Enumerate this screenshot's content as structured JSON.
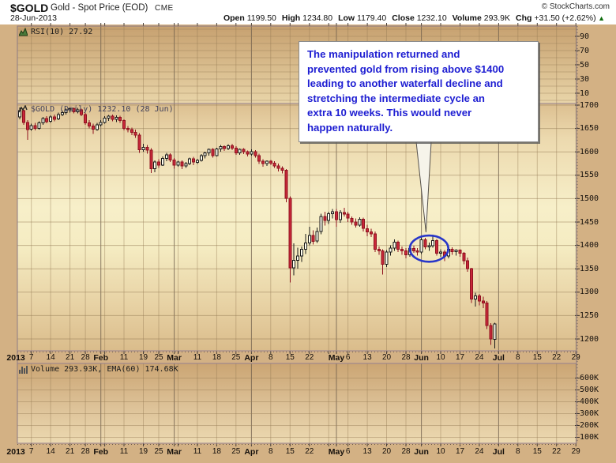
{
  "header": {
    "symbol": "$GOLD",
    "title": "Gold - Spot Price (EOD)",
    "exchange": "CME",
    "copyright": "© StockCharts.com",
    "date": "28-Jun-2013",
    "quote_fields": [
      {
        "label": "Open",
        "value": "1199.50"
      },
      {
        "label": "High",
        "value": "1234.80"
      },
      {
        "label": "Low",
        "value": "1179.40"
      },
      {
        "label": "Close",
        "value": "1232.10"
      },
      {
        "label": "Volume",
        "value": "293.9K"
      },
      {
        "label": "Chg",
        "value": "+31.50 (+2.62%)"
      }
    ],
    "chg_up_symbol": "▲"
  },
  "panels": {
    "rsi": {
      "label": "RSI(10) 27.92"
    },
    "price": {
      "label": "$GOLD (Daily) 1232.10 (28 Jun)"
    },
    "volume": {
      "label": "Volume 293.93K, EMA(60) 174.68K"
    }
  },
  "annotation": {
    "lines": [
      "The manipulation returned and",
      "prevented gold from rising above $1400",
      "leading to another waterfall decline and",
      "stretching the intermediate cycle an",
      "extra 10 weeks. This would never",
      "happen naturally."
    ]
  },
  "colors": {
    "candle_up_fill": "#fffdee",
    "candle_up_stroke": "#1a1a1a",
    "candle_down_fill": "#c9283a",
    "candle_down_stroke": "#8f121f",
    "annotation_text": "#1e1ed2",
    "ellipse_blue": "#2736c9",
    "background_tan": "#d3b184",
    "grid": "rgba(148,122,84,0.5)"
  },
  "chart_data": {
    "type": "candlestick",
    "title": "$GOLD (Daily) 1232.10 (28 Jun)",
    "legend_note": "red = down day, white = up day; RSI and Volume panes empty in source image",
    "price_axis": {
      "ticks": [
        1700,
        1650,
        1600,
        1550,
        1500,
        1450,
        1400,
        1350,
        1300,
        1250,
        1200
      ],
      "range": [
        1147,
        1703
      ]
    },
    "rsi_axis": {
      "ticks": [
        90,
        70,
        50,
        30,
        10
      ],
      "indicator": "RSI(10)",
      "value": 27.92
    },
    "volume_axis": {
      "ticks": [
        600,
        500,
        400,
        300,
        200,
        100
      ],
      "unit": "K",
      "volume": "293.93K",
      "ema60": "174.68K"
    },
    "x_labels": [
      {
        "t": "2013",
        "i": -1,
        "m": true
      },
      {
        "t": "7",
        "i": 3
      },
      {
        "t": "14",
        "i": 8
      },
      {
        "t": "21",
        "i": 13
      },
      {
        "t": "28",
        "i": 17
      },
      {
        "t": "Feb",
        "i": 21,
        "m": true
      },
      {
        "t": "11",
        "i": 27
      },
      {
        "t": "19",
        "i": 32
      },
      {
        "t": "25",
        "i": 36
      },
      {
        "t": "Mar",
        "i": 40,
        "m": true
      },
      {
        "t": "11",
        "i": 46
      },
      {
        "t": "18",
        "i": 51
      },
      {
        "t": "25",
        "i": 56
      },
      {
        "t": "Apr",
        "i": 60,
        "m": true
      },
      {
        "t": "8",
        "i": 65
      },
      {
        "t": "15",
        "i": 70
      },
      {
        "t": "22",
        "i": 75
      },
      {
        "t": "May",
        "i": 82,
        "m": true
      },
      {
        "t": "6",
        "i": 85
      },
      {
        "t": "13",
        "i": 90
      },
      {
        "t": "20",
        "i": 95
      },
      {
        "t": "28",
        "i": 100
      },
      {
        "t": "Jun",
        "i": 104,
        "m": true
      },
      {
        "t": "10",
        "i": 109
      },
      {
        "t": "17",
        "i": 114
      },
      {
        "t": "24",
        "i": 119
      },
      {
        "t": "Jul",
        "i": 124,
        "m": true
      },
      {
        "t": "8",
        "i": 129
      },
      {
        "t": "15",
        "i": 134
      },
      {
        "t": "22",
        "i": 139
      },
      {
        "t": "29",
        "i": 144
      }
    ],
    "grid": {
      "weeks": [
        3,
        8,
        13,
        17,
        22,
        27,
        32,
        36,
        41,
        46,
        51,
        56,
        65,
        70,
        75,
        80,
        85,
        90,
        95,
        100,
        109,
        114,
        119,
        129,
        134,
        139,
        144
      ],
      "months": [
        21,
        40,
        60,
        82,
        104,
        124
      ]
    },
    "marks": {
      "ellipse": {
        "i": 106,
        "price": 1393,
        "rx_days": 5,
        "ry_price": 28
      },
      "pointer_tip": {
        "i": 105.2,
        "price": 1428
      }
    },
    "ohlc": [
      [
        1675,
        1695,
        1670,
        1688
      ],
      [
        1688,
        1690,
        1658,
        1663
      ],
      [
        1663,
        1668,
        1626,
        1648
      ],
      [
        1648,
        1660,
        1645,
        1656
      ],
      [
        1656,
        1662,
        1646,
        1650
      ],
      [
        1650,
        1665,
        1648,
        1662
      ],
      [
        1662,
        1675,
        1658,
        1671
      ],
      [
        1671,
        1676,
        1661,
        1665
      ],
      [
        1665,
        1678,
        1662,
        1675
      ],
      [
        1675,
        1680,
        1665,
        1670
      ],
      [
        1670,
        1684,
        1668,
        1680
      ],
      [
        1680,
        1688,
        1676,
        1684
      ],
      [
        1684,
        1692,
        1680,
        1690
      ],
      [
        1690,
        1696,
        1684,
        1692
      ],
      [
        1692,
        1695,
        1682,
        1686
      ],
      [
        1686,
        1694,
        1682,
        1690
      ],
      [
        1690,
        1692,
        1676,
        1680
      ],
      [
        1680,
        1683,
        1658,
        1662
      ],
      [
        1662,
        1668,
        1650,
        1655
      ],
      [
        1655,
        1660,
        1638,
        1648
      ],
      [
        1648,
        1662,
        1645,
        1658
      ],
      [
        1658,
        1668,
        1654,
        1663
      ],
      [
        1663,
        1676,
        1660,
        1672
      ],
      [
        1672,
        1679,
        1666,
        1676
      ],
      [
        1676,
        1680,
        1665,
        1670
      ],
      [
        1670,
        1678,
        1664,
        1674
      ],
      [
        1674,
        1677,
        1662,
        1667
      ],
      [
        1667,
        1670,
        1646,
        1650
      ],
      [
        1650,
        1655,
        1642,
        1648
      ],
      [
        1648,
        1652,
        1636,
        1642
      ],
      [
        1642,
        1648,
        1630,
        1636
      ],
      [
        1636,
        1640,
        1598,
        1605
      ],
      [
        1605,
        1617,
        1600,
        1610
      ],
      [
        1610,
        1615,
        1596,
        1604
      ],
      [
        1604,
        1608,
        1555,
        1564
      ],
      [
        1564,
        1582,
        1556,
        1578
      ],
      [
        1578,
        1584,
        1566,
        1572
      ],
      [
        1572,
        1590,
        1570,
        1586
      ],
      [
        1586,
        1598,
        1580,
        1594
      ],
      [
        1594,
        1597,
        1578,
        1583
      ],
      [
        1583,
        1587,
        1564,
        1572
      ],
      [
        1572,
        1581,
        1568,
        1578
      ],
      [
        1578,
        1582,
        1563,
        1570
      ],
      [
        1570,
        1578,
        1566,
        1575
      ],
      [
        1575,
        1588,
        1572,
        1585
      ],
      [
        1585,
        1589,
        1572,
        1578
      ],
      [
        1578,
        1585,
        1574,
        1582
      ],
      [
        1582,
        1595,
        1579,
        1592
      ],
      [
        1592,
        1600,
        1586,
        1598
      ],
      [
        1598,
        1607,
        1592,
        1605
      ],
      [
        1605,
        1608,
        1588,
        1592
      ],
      [
        1592,
        1609,
        1590,
        1606
      ],
      [
        1606,
        1615,
        1600,
        1611
      ],
      [
        1611,
        1614,
        1602,
        1607
      ],
      [
        1607,
        1616,
        1604,
        1613
      ],
      [
        1613,
        1617,
        1604,
        1608
      ],
      [
        1608,
        1612,
        1594,
        1598
      ],
      [
        1598,
        1607,
        1594,
        1605
      ],
      [
        1605,
        1608,
        1595,
        1600
      ],
      [
        1600,
        1603,
        1590,
        1595
      ],
      [
        1595,
        1605,
        1592,
        1600
      ],
      [
        1600,
        1604,
        1588,
        1592
      ],
      [
        1592,
        1596,
        1574,
        1580
      ],
      [
        1580,
        1584,
        1568,
        1575
      ],
      [
        1575,
        1582,
        1570,
        1580
      ],
      [
        1580,
        1583,
        1572,
        1576
      ],
      [
        1576,
        1580,
        1566,
        1570
      ],
      [
        1570,
        1575,
        1558,
        1565
      ],
      [
        1565,
        1569,
        1554,
        1561
      ],
      [
        1561,
        1563,
        1492,
        1501
      ],
      [
        1501,
        1505,
        1321,
        1352
      ],
      [
        1352,
        1404,
        1336,
        1368
      ],
      [
        1368,
        1395,
        1350,
        1377
      ],
      [
        1377,
        1398,
        1365,
        1392
      ],
      [
        1392,
        1425,
        1382,
        1405
      ],
      [
        1405,
        1440,
        1400,
        1421
      ],
      [
        1421,
        1432,
        1402,
        1409
      ],
      [
        1409,
        1438,
        1405,
        1430
      ],
      [
        1430,
        1468,
        1424,
        1462
      ],
      [
        1462,
        1472,
        1442,
        1453
      ],
      [
        1453,
        1472,
        1446,
        1468
      ],
      [
        1468,
        1478,
        1458,
        1472
      ],
      [
        1472,
        1478,
        1440,
        1455
      ],
      [
        1455,
        1475,
        1448,
        1470
      ],
      [
        1470,
        1480,
        1462,
        1467
      ],
      [
        1467,
        1472,
        1450,
        1458
      ],
      [
        1458,
        1462,
        1444,
        1450
      ],
      [
        1450,
        1458,
        1438,
        1443
      ],
      [
        1443,
        1460,
        1440,
        1456
      ],
      [
        1456,
        1459,
        1430,
        1436
      ],
      [
        1436,
        1444,
        1420,
        1429
      ],
      [
        1429,
        1436,
        1418,
        1425
      ],
      [
        1425,
        1430,
        1386,
        1392
      ],
      [
        1392,
        1398,
        1380,
        1388
      ],
      [
        1388,
        1392,
        1338,
        1360
      ],
      [
        1360,
        1390,
        1354,
        1386
      ],
      [
        1386,
        1400,
        1378,
        1394
      ],
      [
        1394,
        1413,
        1388,
        1407
      ],
      [
        1407,
        1410,
        1386,
        1392
      ],
      [
        1392,
        1398,
        1380,
        1388
      ],
      [
        1388,
        1394,
        1372,
        1380
      ],
      [
        1380,
        1398,
        1376,
        1393
      ],
      [
        1393,
        1399,
        1384,
        1388
      ],
      [
        1388,
        1394,
        1378,
        1386
      ],
      [
        1386,
        1418,
        1382,
        1412
      ],
      [
        1412,
        1416,
        1392,
        1397
      ],
      [
        1397,
        1406,
        1388,
        1399
      ],
      [
        1399,
        1423,
        1395,
        1410
      ],
      [
        1410,
        1414,
        1378,
        1383
      ],
      [
        1383,
        1392,
        1376,
        1386
      ],
      [
        1386,
        1390,
        1366,
        1377
      ],
      [
        1377,
        1394,
        1372,
        1392
      ],
      [
        1392,
        1396,
        1380,
        1387
      ],
      [
        1387,
        1392,
        1378,
        1390
      ],
      [
        1390,
        1392,
        1376,
        1383
      ],
      [
        1383,
        1386,
        1360,
        1367
      ],
      [
        1367,
        1374,
        1344,
        1350
      ],
      [
        1350,
        1352,
        1277,
        1285
      ],
      [
        1285,
        1299,
        1269,
        1292
      ],
      [
        1292,
        1296,
        1272,
        1281
      ],
      [
        1281,
        1290,
        1266,
        1277
      ],
      [
        1277,
        1281,
        1221,
        1229
      ],
      [
        1229,
        1234,
        1187,
        1200
      ],
      [
        1199.5,
        1234.8,
        1179.4,
        1232.1
      ]
    ]
  }
}
